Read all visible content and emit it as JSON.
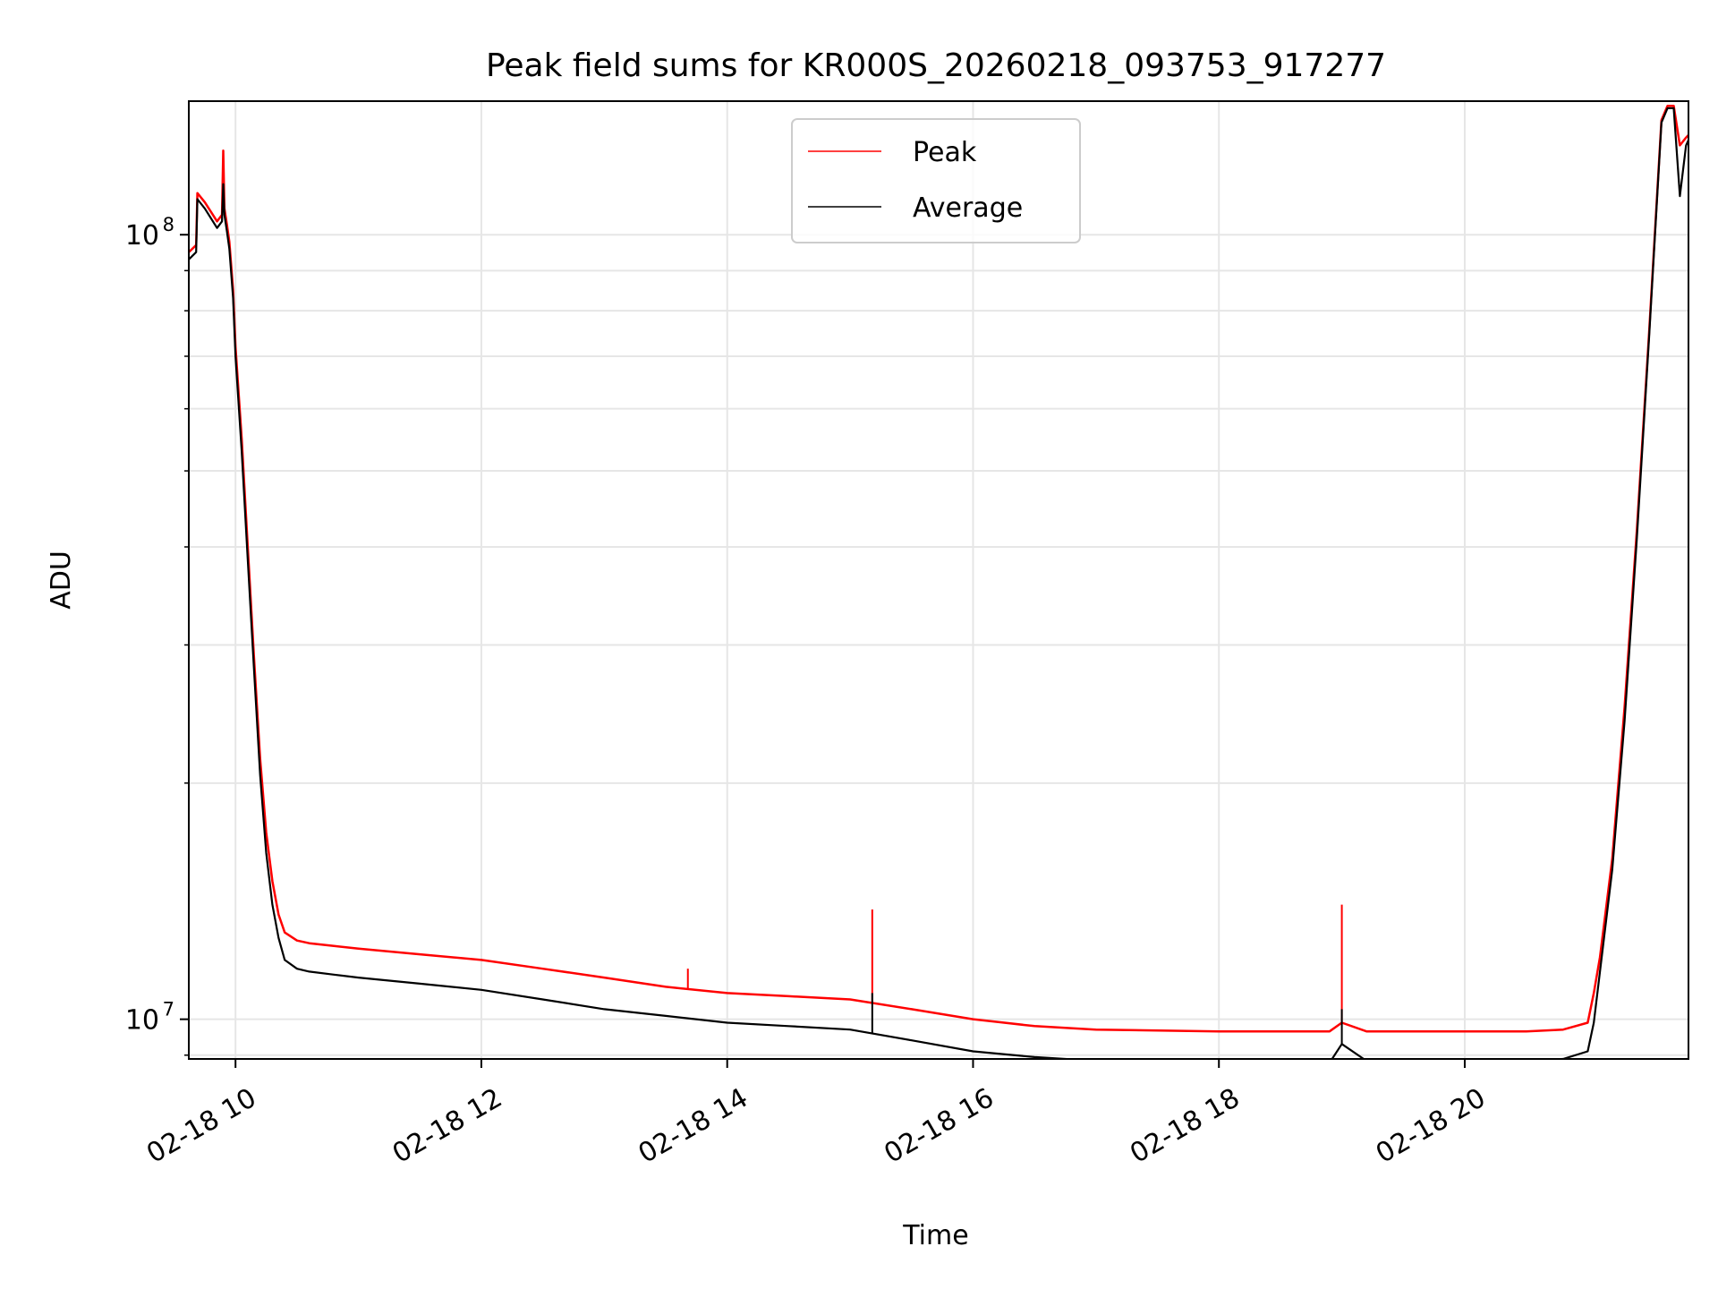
{
  "chart_data": {
    "type": "line",
    "title": "Peak field sums for KR000S_20260218_093753_917277",
    "xlabel": "Time",
    "ylabel": "ADU",
    "yscale": "log",
    "xlim": [
      9.62,
      21.82
    ],
    "ylim": [
      8900000,
      148000000
    ],
    "grid": true,
    "legend_position": "top-center",
    "x_unit": "hours on 2026-02-18",
    "x_ticks": [
      {
        "value": 10,
        "label": "02-18 10"
      },
      {
        "value": 12,
        "label": "02-18 12"
      },
      {
        "value": 14,
        "label": "02-18 14"
      },
      {
        "value": 16,
        "label": "02-18 16"
      },
      {
        "value": 18,
        "label": "02-18 18"
      },
      {
        "value": 20,
        "label": "02-18 20"
      }
    ],
    "y_major_ticks": [
      {
        "value": 10000000,
        "base": "10",
        "exp": "7"
      },
      {
        "value": 100000000,
        "base": "10",
        "exp": "8"
      }
    ],
    "y_minor_ticks": [
      9000000,
      20000000,
      30000000,
      40000000,
      50000000,
      60000000,
      70000000,
      80000000,
      90000000
    ],
    "series": [
      {
        "name": "Peak",
        "color": "#ff0000",
        "x": [
          9.62,
          9.68,
          9.69,
          9.75,
          9.85,
          9.89,
          9.9,
          9.91,
          9.93,
          9.95,
          9.98,
          10.0,
          10.05,
          10.1,
          10.15,
          10.2,
          10.25,
          10.3,
          10.35,
          10.4,
          10.5,
          10.6,
          10.8,
          11.0,
          11.5,
          12.0,
          12.5,
          13.0,
          13.5,
          14.0,
          14.5,
          15.0,
          15.5,
          16.0,
          16.5,
          17.0,
          18.0,
          18.9,
          19.0,
          19.2,
          19.5,
          20.0,
          20.5,
          20.8,
          21.0,
          21.05,
          21.1,
          21.2,
          21.3,
          21.4,
          21.5,
          21.6,
          21.65,
          21.7,
          21.75,
          21.8,
          21.82
        ],
        "y": [
          95000000,
          97000000,
          113000000,
          110000000,
          104000000,
          106000000,
          128000000,
          108000000,
          103000000,
          98000000,
          85000000,
          72000000,
          55000000,
          40000000,
          29000000,
          21500000,
          17300000,
          15000000,
          13600000,
          12900000,
          12600000,
          12500000,
          12400000,
          12300000,
          12100000,
          11900000,
          11600000,
          11300000,
          11000000,
          10800000,
          10700000,
          10600000,
          10300000,
          10000000,
          9800000,
          9700000,
          9650000,
          9650000,
          9900000,
          9650000,
          9650000,
          9650000,
          9650000,
          9700000,
          9900000,
          10800000,
          12000000,
          16000000,
          25000000,
          42000000,
          75000000,
          140000000,
          146000000,
          146000000,
          130000000,
          133000000,
          134000000
        ],
        "spikes": [
          {
            "x": 13.68,
            "y": 11600000
          },
          {
            "x": 15.18,
            "y": 13800000
          },
          {
            "x": 19.0,
            "y": 14000000
          }
        ]
      },
      {
        "name": "Average",
        "color": "#000000",
        "x": [
          9.62,
          9.68,
          9.69,
          9.75,
          9.85,
          9.89,
          9.9,
          9.91,
          9.93,
          9.95,
          9.98,
          10.0,
          10.05,
          10.1,
          10.15,
          10.2,
          10.25,
          10.3,
          10.35,
          10.4,
          10.5,
          10.6,
          10.8,
          11.0,
          11.5,
          12.0,
          12.5,
          13.0,
          13.5,
          14.0,
          14.5,
          15.0,
          15.5,
          16.0,
          16.5,
          17.0,
          18.0,
          18.9,
          19.0,
          19.2,
          19.5,
          20.0,
          20.5,
          20.8,
          21.0,
          21.05,
          21.1,
          21.2,
          21.3,
          21.4,
          21.5,
          21.6,
          21.65,
          21.7,
          21.75,
          21.8,
          21.82
        ],
        "y": [
          93000000,
          95000000,
          111000000,
          108000000,
          102000000,
          104000000,
          116000000,
          106000000,
          101000000,
          96000000,
          83000000,
          70000000,
          53000000,
          38500000,
          28000000,
          20500000,
          16300000,
          14000000,
          12700000,
          11900000,
          11600000,
          11500000,
          11400000,
          11300000,
          11100000,
          10900000,
          10600000,
          10300000,
          10100000,
          9900000,
          9800000,
          9700000,
          9400000,
          9100000,
          8950000,
          8850000,
          8800000,
          8800000,
          9300000,
          8850000,
          8850000,
          8850000,
          8850000,
          8900000,
          9100000,
          9900000,
          11500000,
          15500000,
          24000000,
          41000000,
          74000000,
          139000000,
          145000000,
          145000000,
          112000000,
          130000000,
          132000000
        ],
        "spikes": [
          {
            "x": 15.18,
            "y": 10800000
          },
          {
            "x": 19.0,
            "y": 10300000
          }
        ]
      }
    ]
  }
}
